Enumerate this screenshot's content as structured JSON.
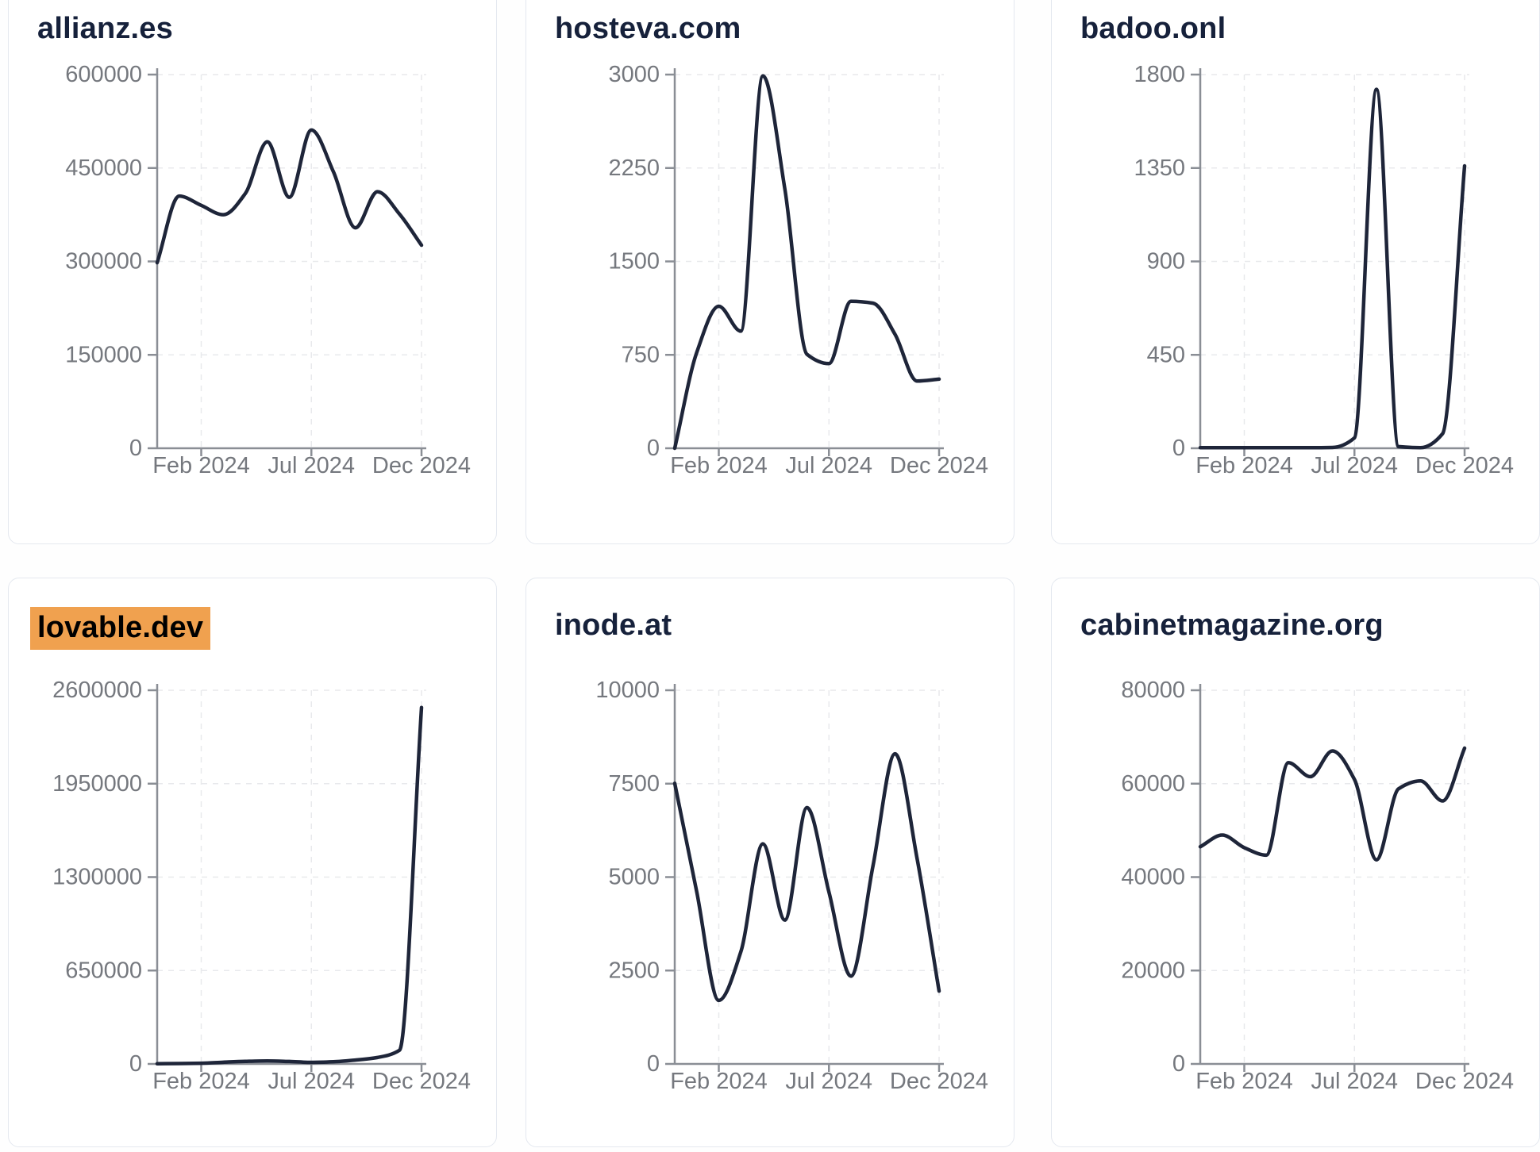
{
  "page": {
    "kind": "domain-traffic-trend-dashboard",
    "theme": {
      "page_bg": "#fefefe",
      "card_bg": "#ffffff",
      "card_border": "#e4e8ef",
      "title_color": "#16213b",
      "line_color": "#1e2539",
      "axis_color": "#8a8e95",
      "tick_label_color": "#75787e",
      "grid_color": "#e8e9ec",
      "highlight_bg": "#f0a14f",
      "highlight_text": "#000000"
    }
  },
  "chart_data": [
    {
      "type": "line",
      "title": "allianz.es",
      "title_highlighted": false,
      "x": [
        "Dec 2023",
        "Jan 2024",
        "Feb 2024",
        "Mar 2024",
        "Apr 2024",
        "May 2024",
        "Jun 2024",
        "Jul 2024",
        "Aug 2024",
        "Sep 2024",
        "Oct 2024",
        "Nov 2024",
        "Dec 2024"
      ],
      "values": [
        298000,
        405000,
        390000,
        375000,
        409000,
        492000,
        403000,
        511000,
        444000,
        354000,
        412000,
        376000,
        326000
      ],
      "ylim": [
        0,
        600000
      ],
      "yticks": [
        0,
        150000,
        300000,
        450000,
        600000
      ],
      "xtick_labels": [
        "Feb 2024",
        "Jul 2024",
        "Dec 2024"
      ],
      "xtick_indices": [
        2,
        7,
        12
      ],
      "grid": true,
      "legend": "none"
    },
    {
      "type": "line",
      "title": "hosteva.com",
      "title_highlighted": false,
      "x": [
        "Dec 2023",
        "Jan 2024",
        "Feb 2024",
        "Mar 2024",
        "Apr 2024",
        "May 2024",
        "Jun 2024",
        "Jul 2024",
        "Aug 2024",
        "Sep 2024",
        "Oct 2024",
        "Nov 2024",
        "Dec 2024"
      ],
      "values": [
        0,
        770,
        1140,
        940,
        2990,
        2080,
        755,
        680,
        1180,
        1165,
        915,
        540,
        555
      ],
      "ylim": [
        0,
        3000
      ],
      "yticks": [
        0,
        750,
        1500,
        2250,
        3000
      ],
      "xtick_labels": [
        "Feb 2024",
        "Jul 2024",
        "Dec 2024"
      ],
      "xtick_indices": [
        2,
        7,
        12
      ],
      "grid": true,
      "legend": "none"
    },
    {
      "type": "line",
      "title": "badoo.onl",
      "title_highlighted": false,
      "x": [
        "Dec 2023",
        "Jan 2024",
        "Feb 2024",
        "Mar 2024",
        "Apr 2024",
        "May 2024",
        "Jun 2024",
        "Jul 2024",
        "Aug 2024",
        "Sep 2024",
        "Oct 2024",
        "Nov 2024",
        "Dec 2024"
      ],
      "values": [
        3,
        3,
        3,
        3,
        3,
        3,
        4,
        50,
        1729,
        8,
        3,
        70,
        1360
      ],
      "ylim": [
        0,
        1800
      ],
      "yticks": [
        0,
        450,
        900,
        1350,
        1800
      ],
      "xtick_labels": [
        "Feb 2024",
        "Jul 2024",
        "Dec 2024"
      ],
      "xtick_indices": [
        2,
        7,
        12
      ],
      "grid": true,
      "legend": "none"
    },
    {
      "type": "line",
      "title": "lovable.dev",
      "title_highlighted": true,
      "x": [
        "Dec 2023",
        "Jan 2024",
        "Feb 2024",
        "Mar 2024",
        "Apr 2024",
        "May 2024",
        "Jun 2024",
        "Jul 2024",
        "Aug 2024",
        "Sep 2024",
        "Oct 2024",
        "Nov 2024",
        "Dec 2024"
      ],
      "values": [
        1500,
        2500,
        5000,
        12000,
        18000,
        21000,
        17000,
        11000,
        15000,
        27000,
        45000,
        95000,
        2480000
      ],
      "ylim": [
        0,
        2600000
      ],
      "yticks": [
        0,
        650000,
        1300000,
        1950000,
        2600000
      ],
      "xtick_labels": [
        "Feb 2024",
        "Jul 2024",
        "Dec 2024"
      ],
      "xtick_indices": [
        2,
        7,
        12
      ],
      "grid": true,
      "legend": "none"
    },
    {
      "type": "line",
      "title": "inode.at",
      "title_highlighted": false,
      "x": [
        "Dec 2023",
        "Jan 2024",
        "Feb 2024",
        "Mar 2024",
        "Apr 2024",
        "May 2024",
        "Jun 2024",
        "Jul 2024",
        "Aug 2024",
        "Sep 2024",
        "Oct 2024",
        "Nov 2024",
        "Dec 2024"
      ],
      "values": [
        7510,
        4600,
        1700,
        3000,
        5890,
        3850,
        6860,
        4600,
        2350,
        5300,
        8300,
        5500,
        1950
      ],
      "ylim": [
        0,
        10000
      ],
      "yticks": [
        0,
        2500,
        5000,
        7500,
        10000
      ],
      "xtick_labels": [
        "Feb 2024",
        "Jul 2024",
        "Dec 2024"
      ],
      "xtick_indices": [
        2,
        7,
        12
      ],
      "grid": true,
      "legend": "none"
    },
    {
      "type": "line",
      "title": "cabinetmagazine.org",
      "title_highlighted": false,
      "x": [
        "Dec 2023",
        "Jan 2024",
        "Feb 2024",
        "Mar 2024",
        "Apr 2024",
        "May 2024",
        "Jun 2024",
        "Jul 2024",
        "Aug 2024",
        "Sep 2024",
        "Oct 2024",
        "Nov 2024",
        "Dec 2024"
      ],
      "values": [
        46500,
        49000,
        46300,
        44700,
        64500,
        61500,
        67000,
        60900,
        43700,
        58900,
        60600,
        56300,
        67600
      ],
      "ylim": [
        0,
        80000
      ],
      "yticks": [
        0,
        20000,
        40000,
        60000,
        80000
      ],
      "xtick_labels": [
        "Feb 2024",
        "Jul 2024",
        "Dec 2024"
      ],
      "xtick_indices": [
        2,
        7,
        12
      ],
      "grid": true,
      "legend": "none"
    }
  ]
}
